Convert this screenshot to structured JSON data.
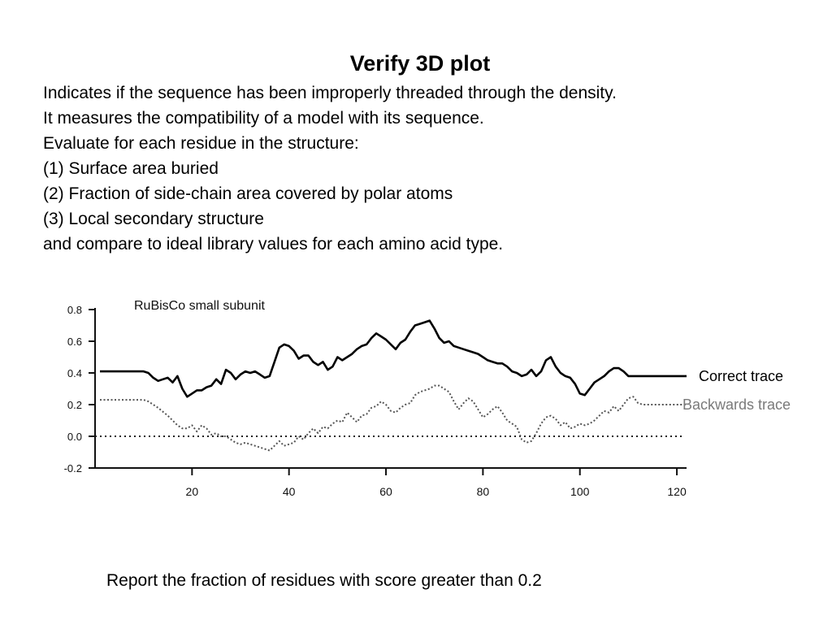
{
  "slide": {
    "title": "Verify 3D plot",
    "lines": [
      "Indicates if the sequence has been improperly threaded through the density.",
      "It measures the compatibility of a model with its sequence.",
      "Evaluate for each residue in the structure:",
      "(1) Surface area buried",
      "(2) Fraction of side-chain area covered by polar atoms",
      "(3) Local secondary structure",
      "and compare to ideal library values for each amino acid type."
    ],
    "footer": "Report the fraction of residues with score greater than 0.2"
  },
  "chart_data": {
    "type": "line",
    "title": "RuBisCo small subunit",
    "xlabel": "",
    "ylabel": "",
    "xlim": [
      0,
      122
    ],
    "ylim": [
      -0.2,
      0.8
    ],
    "x_ticks": [
      20,
      40,
      60,
      80,
      100,
      120
    ],
    "x_tick_labels": [
      "20",
      "40",
      "60",
      "80",
      "100",
      "120"
    ],
    "y_ticks": [
      0.8,
      0.6,
      0.4,
      0.2,
      0.0,
      -0.2
    ],
    "y_tick_labels": [
      "0.8",
      "0.6",
      "0.4",
      "0.2",
      "0.0",
      "-0.2"
    ],
    "grid": false,
    "reference_lines": [
      {
        "y": 0.0,
        "style": "dotted"
      }
    ],
    "series": [
      {
        "name": "Correct trace",
        "style": "solid",
        "color": "#000000",
        "points": [
          [
            1,
            0.41
          ],
          [
            10,
            0.41
          ],
          [
            11,
            0.4
          ],
          [
            12,
            0.37
          ],
          [
            13,
            0.35
          ],
          [
            14,
            0.36
          ],
          [
            15,
            0.37
          ],
          [
            16,
            0.34
          ],
          [
            17,
            0.38
          ],
          [
            18,
            0.3
          ],
          [
            19,
            0.25
          ],
          [
            20,
            0.27
          ],
          [
            21,
            0.29
          ],
          [
            22,
            0.29
          ],
          [
            23,
            0.31
          ],
          [
            24,
            0.32
          ],
          [
            25,
            0.36
          ],
          [
            26,
            0.33
          ],
          [
            27,
            0.42
          ],
          [
            28,
            0.4
          ],
          [
            29,
            0.36
          ],
          [
            30,
            0.39
          ],
          [
            31,
            0.41
          ],
          [
            32,
            0.4
          ],
          [
            33,
            0.41
          ],
          [
            34,
            0.39
          ],
          [
            35,
            0.37
          ],
          [
            36,
            0.38
          ],
          [
            37,
            0.47
          ],
          [
            38,
            0.56
          ],
          [
            39,
            0.58
          ],
          [
            40,
            0.57
          ],
          [
            41,
            0.54
          ],
          [
            42,
            0.49
          ],
          [
            43,
            0.51
          ],
          [
            44,
            0.51
          ],
          [
            45,
            0.47
          ],
          [
            46,
            0.45
          ],
          [
            47,
            0.47
          ],
          [
            48,
            0.42
          ],
          [
            49,
            0.44
          ],
          [
            50,
            0.5
          ],
          [
            51,
            0.48
          ],
          [
            52,
            0.5
          ],
          [
            53,
            0.52
          ],
          [
            54,
            0.55
          ],
          [
            55,
            0.57
          ],
          [
            56,
            0.58
          ],
          [
            57,
            0.62
          ],
          [
            58,
            0.65
          ],
          [
            59,
            0.63
          ],
          [
            60,
            0.61
          ],
          [
            61,
            0.58
          ],
          [
            62,
            0.55
          ],
          [
            63,
            0.59
          ],
          [
            64,
            0.61
          ],
          [
            65,
            0.66
          ],
          [
            66,
            0.7
          ],
          [
            67,
            0.71
          ],
          [
            68,
            0.72
          ],
          [
            69,
            0.73
          ],
          [
            70,
            0.68
          ],
          [
            71,
            0.62
          ],
          [
            72,
            0.59
          ],
          [
            73,
            0.6
          ],
          [
            74,
            0.57
          ],
          [
            75,
            0.56
          ],
          [
            76,
            0.55
          ],
          [
            77,
            0.54
          ],
          [
            78,
            0.53
          ],
          [
            79,
            0.52
          ],
          [
            80,
            0.5
          ],
          [
            81,
            0.48
          ],
          [
            82,
            0.47
          ],
          [
            83,
            0.46
          ],
          [
            84,
            0.46
          ],
          [
            85,
            0.44
          ],
          [
            86,
            0.41
          ],
          [
            87,
            0.4
          ],
          [
            88,
            0.38
          ],
          [
            89,
            0.39
          ],
          [
            90,
            0.42
          ],
          [
            91,
            0.38
          ],
          [
            92,
            0.41
          ],
          [
            93,
            0.48
          ],
          [
            94,
            0.5
          ],
          [
            95,
            0.44
          ],
          [
            96,
            0.4
          ],
          [
            97,
            0.38
          ],
          [
            98,
            0.37
          ],
          [
            99,
            0.33
          ],
          [
            100,
            0.27
          ],
          [
            101,
            0.26
          ],
          [
            102,
            0.3
          ],
          [
            103,
            0.34
          ],
          [
            104,
            0.36
          ],
          [
            105,
            0.38
          ],
          [
            106,
            0.41
          ],
          [
            107,
            0.43
          ],
          [
            108,
            0.43
          ],
          [
            109,
            0.41
          ],
          [
            110,
            0.38
          ],
          [
            111,
            0.38
          ],
          [
            122,
            0.38
          ]
        ]
      },
      {
        "name": "Backwards trace",
        "style": "dotted",
        "color": "#555555",
        "points": [
          [
            1,
            0.23
          ],
          [
            10,
            0.23
          ],
          [
            11,
            0.22
          ],
          [
            13,
            0.18
          ],
          [
            15,
            0.13
          ],
          [
            16,
            0.1
          ],
          [
            17,
            0.07
          ],
          [
            18,
            0.05
          ],
          [
            19,
            0.05
          ],
          [
            20,
            0.07
          ],
          [
            21,
            0.03
          ],
          [
            22,
            0.07
          ],
          [
            23,
            0.05
          ],
          [
            24,
            0.01
          ],
          [
            25,
            0.02
          ],
          [
            26,
            0.0
          ],
          [
            27,
            0.0
          ],
          [
            28,
            -0.02
          ],
          [
            29,
            -0.04
          ],
          [
            30,
            -0.05
          ],
          [
            31,
            -0.04
          ],
          [
            32,
            -0.05
          ],
          [
            33,
            -0.06
          ],
          [
            34,
            -0.07
          ],
          [
            35,
            -0.08
          ],
          [
            36,
            -0.09
          ],
          [
            37,
            -0.06
          ],
          [
            38,
            -0.03
          ],
          [
            39,
            -0.06
          ],
          [
            40,
            -0.05
          ],
          [
            41,
            -0.04
          ],
          [
            42,
            0.0
          ],
          [
            43,
            -0.02
          ],
          [
            44,
            0.02
          ],
          [
            45,
            0.05
          ],
          [
            46,
            0.02
          ],
          [
            47,
            0.06
          ],
          [
            48,
            0.05
          ],
          [
            49,
            0.08
          ],
          [
            50,
            0.1
          ],
          [
            51,
            0.09
          ],
          [
            52,
            0.15
          ],
          [
            53,
            0.12
          ],
          [
            54,
            0.09
          ],
          [
            55,
            0.13
          ],
          [
            56,
            0.14
          ],
          [
            57,
            0.18
          ],
          [
            58,
            0.19
          ],
          [
            59,
            0.22
          ],
          [
            60,
            0.2
          ],
          [
            61,
            0.16
          ],
          [
            62,
            0.15
          ],
          [
            63,
            0.18
          ],
          [
            64,
            0.2
          ],
          [
            65,
            0.21
          ],
          [
            66,
            0.26
          ],
          [
            67,
            0.28
          ],
          [
            68,
            0.29
          ],
          [
            69,
            0.3
          ],
          [
            70,
            0.32
          ],
          [
            71,
            0.32
          ],
          [
            72,
            0.3
          ],
          [
            73,
            0.28
          ],
          [
            74,
            0.22
          ],
          [
            75,
            0.17
          ],
          [
            76,
            0.21
          ],
          [
            77,
            0.24
          ],
          [
            78,
            0.22
          ],
          [
            79,
            0.17
          ],
          [
            80,
            0.12
          ],
          [
            81,
            0.14
          ],
          [
            82,
            0.17
          ],
          [
            83,
            0.19
          ],
          [
            84,
            0.15
          ],
          [
            85,
            0.1
          ],
          [
            86,
            0.08
          ],
          [
            87,
            0.06
          ],
          [
            88,
            -0.02
          ],
          [
            89,
            -0.04
          ],
          [
            90,
            -0.03
          ],
          [
            91,
            0.02
          ],
          [
            92,
            0.08
          ],
          [
            93,
            0.12
          ],
          [
            94,
            0.13
          ],
          [
            95,
            0.11
          ],
          [
            96,
            0.07
          ],
          [
            97,
            0.09
          ],
          [
            98,
            0.05
          ],
          [
            99,
            0.06
          ],
          [
            100,
            0.08
          ],
          [
            101,
            0.07
          ],
          [
            102,
            0.08
          ],
          [
            103,
            0.1
          ],
          [
            104,
            0.13
          ],
          [
            105,
            0.16
          ],
          [
            106,
            0.15
          ],
          [
            107,
            0.19
          ],
          [
            108,
            0.16
          ],
          [
            109,
            0.2
          ],
          [
            110,
            0.24
          ],
          [
            111,
            0.25
          ],
          [
            112,
            0.21
          ],
          [
            113,
            0.2
          ],
          [
            122,
            0.2
          ]
        ]
      }
    ]
  }
}
